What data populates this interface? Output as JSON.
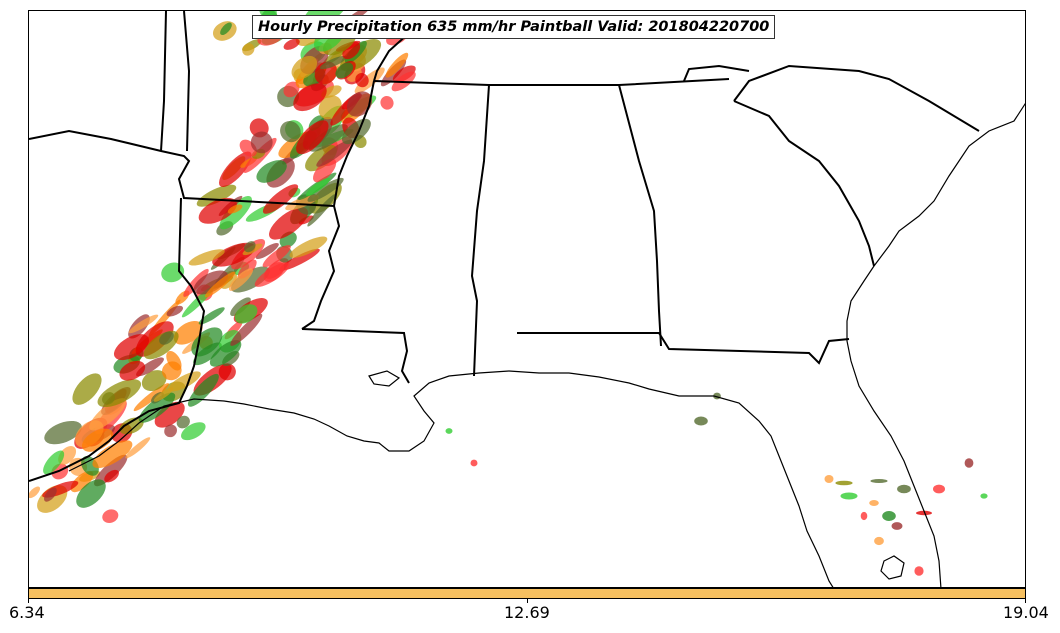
{
  "map": {
    "title": "Hourly Precipitation 635 mm/hr Paintball Valid: 201804220700",
    "region": "Southeastern United States",
    "boundary_color": "#000000",
    "background_color": "#ffffff",
    "paintball_colors": [
      "#e00000",
      "#ff3333",
      "#ff8000",
      "#ffa040",
      "#d4a017",
      "#8b8b00",
      "#9c3030",
      "#32cd32",
      "#228b22",
      "#556b2f"
    ]
  },
  "colorbar": {
    "color": "#f6c060",
    "min_label": "6.34",
    "mid_label": "12.69",
    "max_label": "19.04"
  }
}
